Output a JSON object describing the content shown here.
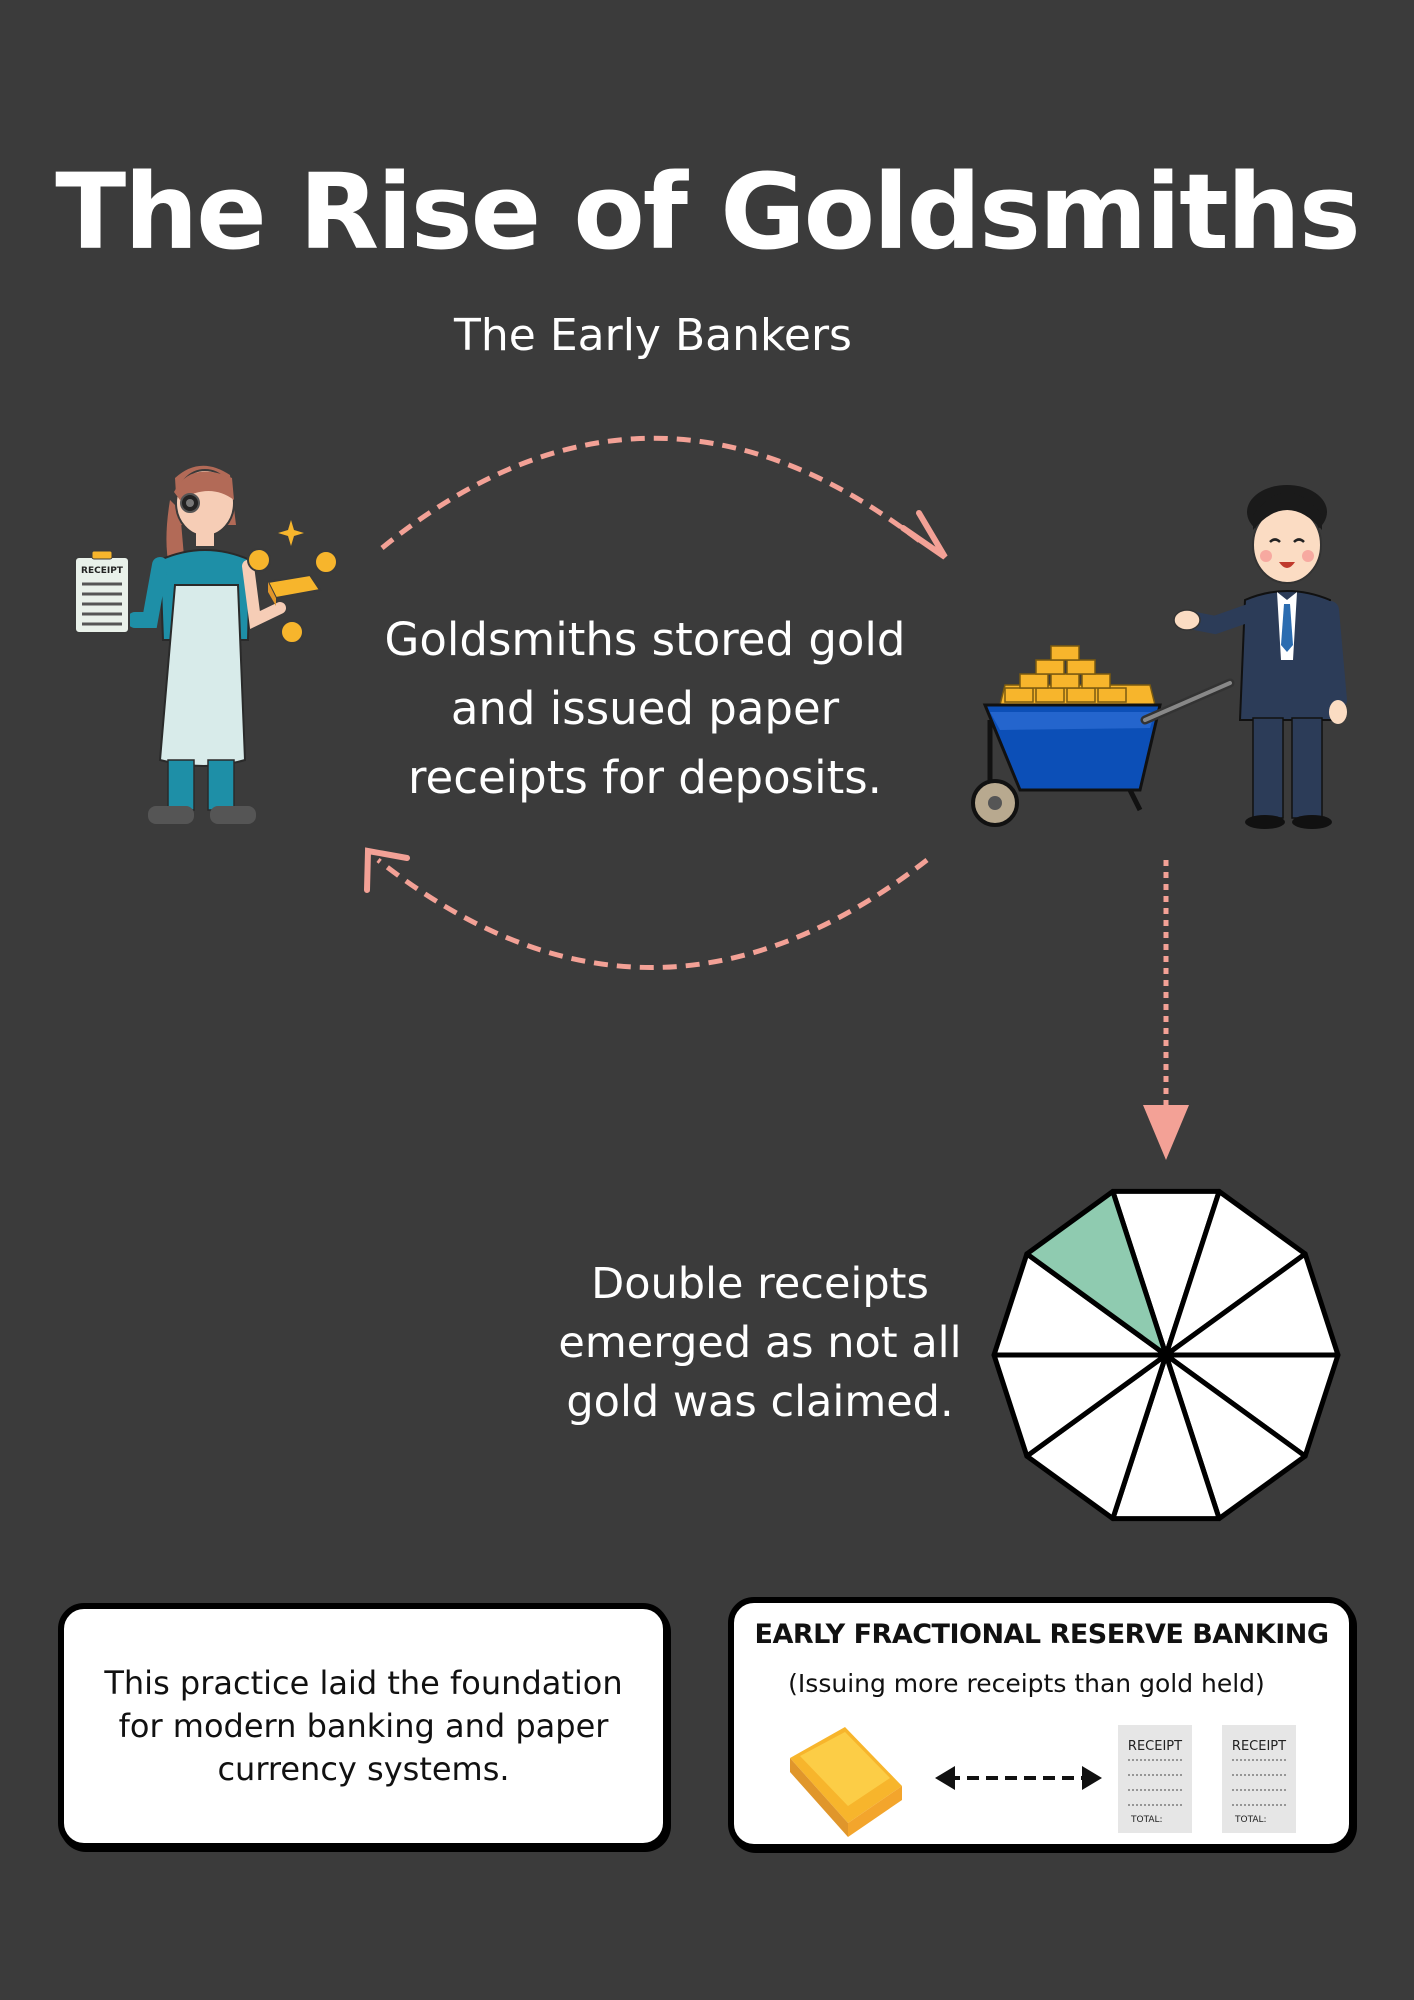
{
  "title": "The Rise of Goldsmiths",
  "subtitle": "The Early Bankers",
  "caption_deposits": "Goldsmiths stored gold and issued paper receipts for deposits.",
  "caption_double": "Double receipts emerged as not all gold was claimed.",
  "illustration": {
    "clipboard_label": "RECEIPT"
  },
  "card_left": {
    "text": "This practice laid the foundation for modern banking and paper currency systems."
  },
  "card_right": {
    "title": "EARLY FRACTIONAL RESERVE BANKING",
    "subtitle": "(Issuing more receipts than gold held)",
    "receipt_label": "RECEIPT",
    "receipt_total": "TOTAL:"
  },
  "reserve_wheel": {
    "segments_total": 10,
    "segments_shaded": 1
  },
  "colors": {
    "background": "#3b3b3b",
    "arrow": "#f3a196",
    "shaded_segment": "#8fcbb0",
    "gold": "#f7b52c",
    "wheelbarrow": "#0c4fb7"
  }
}
